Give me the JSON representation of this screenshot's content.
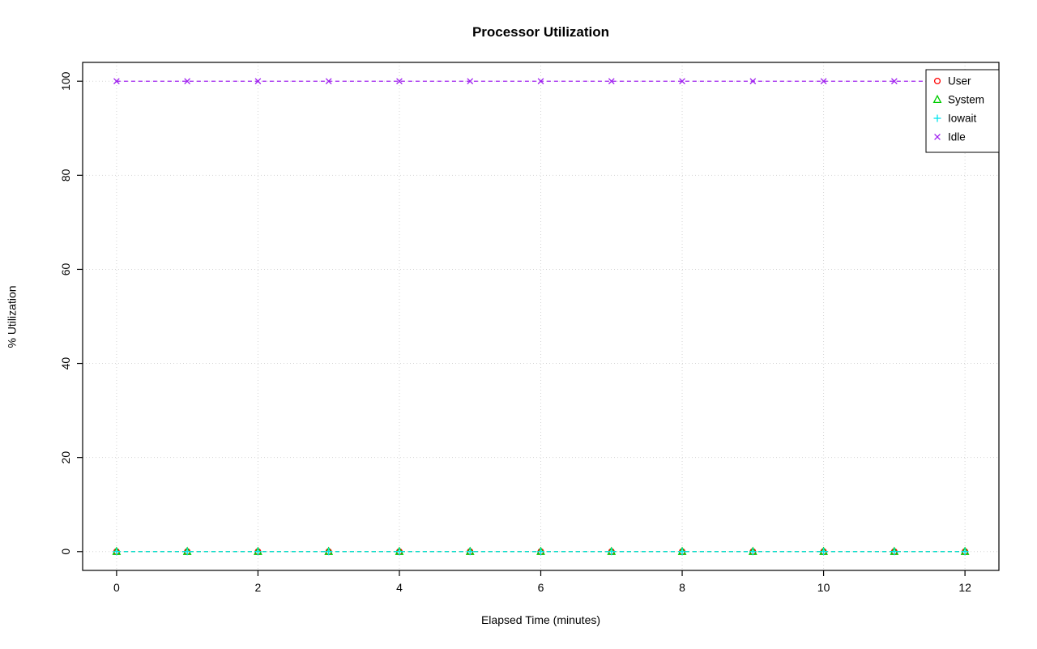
{
  "page": {
    "background": "#ffffff"
  },
  "chart_data": {
    "type": "line",
    "title": "Processor Utilization",
    "xlabel": "Elapsed Time (minutes)",
    "ylabel": "% Utilization",
    "x": [
      0,
      1,
      2,
      3,
      4,
      5,
      6,
      7,
      8,
      9,
      10,
      11,
      12
    ],
    "xlim": [
      0,
      12
    ],
    "ylim": [
      0,
      100
    ],
    "xticks": [
      0,
      2,
      4,
      6,
      8,
      10,
      12
    ],
    "yticks": [
      0,
      20,
      40,
      60,
      80,
      100
    ],
    "grid": true,
    "grid_color": "#d4d4d4",
    "box_color": "#000000",
    "legend": {
      "position": "top-right"
    },
    "series": [
      {
        "name": "User",
        "color": "#ff0000",
        "marker": "circle",
        "values": [
          0,
          0,
          0,
          0,
          0,
          0,
          0,
          0,
          0,
          0,
          0,
          0,
          0
        ]
      },
      {
        "name": "System",
        "color": "#00cd00",
        "marker": "triangle",
        "values": [
          0,
          0,
          0,
          0,
          0,
          0,
          0,
          0,
          0,
          0,
          0,
          0,
          0
        ]
      },
      {
        "name": "Iowait",
        "color": "#00e5ee",
        "marker": "plus",
        "values": [
          0,
          0,
          0,
          0,
          0,
          0,
          0,
          0,
          0,
          0,
          0,
          0,
          0
        ]
      },
      {
        "name": "Idle",
        "color": "#a020f0",
        "marker": "x",
        "values": [
          100,
          100,
          100,
          100,
          100,
          100,
          100,
          100,
          100,
          100,
          100,
          100,
          100
        ]
      }
    ]
  }
}
